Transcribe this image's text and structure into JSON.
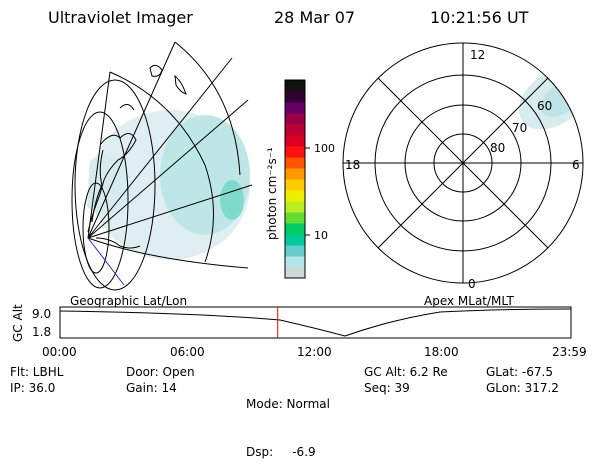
{
  "header": {
    "instrument": "Ultraviolet Imager",
    "date": "28 Mar 07",
    "time": "10:21:56 UT"
  },
  "colorbar": {
    "unit_label": "photon cm⁻²s⁻¹",
    "ticks": [
      "100",
      "10"
    ],
    "colors": [
      "#ccd9d9",
      "#b3e6e6",
      "#66cccc",
      "#00cc99",
      "#00cc66",
      "#66dd33",
      "#bbee22",
      "#eeee00",
      "#ffcc00",
      "#ff9900",
      "#ff5500",
      "#ff1111",
      "#dd0022",
      "#bb0033",
      "#990044",
      "#660066",
      "#330033",
      "#111111"
    ]
  },
  "geo_map": {
    "label": "Geographic Lat/Lon"
  },
  "polar_map": {
    "label": "Apex MLat/MLT",
    "mlt_labels": {
      "top": "12",
      "left": "18",
      "right": "6",
      "bottom": "0"
    },
    "lat_labels": [
      "60",
      "70",
      "80"
    ]
  },
  "timeline": {
    "axis_label": "GC Alt",
    "y_ticks": [
      "9.0",
      "1.8"
    ],
    "x_ticks": [
      "00:00",
      "06:00",
      "12:00",
      "18:00",
      "23:59"
    ],
    "current_time_fraction": 0.426,
    "marker_color": "#ff0000"
  },
  "info": {
    "col1": [
      "Flt: LBHL",
      "IP: 36.0"
    ],
    "col2": [
      "Door: Open",
      "Gain: 14"
    ],
    "col3": [
      "Mode: Normal",
      "Dsp:     -6.9"
    ],
    "col4": [
      "GC Alt: 6.2 Re",
      "Seq: 39"
    ],
    "col5": [
      "GLat: -67.5",
      "GLon: 317.2"
    ]
  }
}
